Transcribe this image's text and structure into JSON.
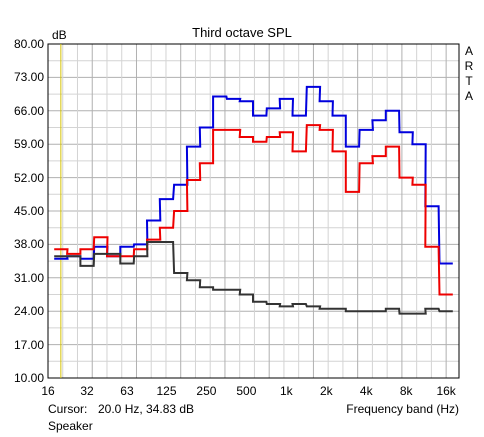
{
  "chart_data": {
    "type": "line",
    "title": "Third octave SPL",
    "ylabel": "dB",
    "xlabel": "Frequency band (Hz)",
    "y_ticks": [
      "80.00",
      "73.00",
      "66.00",
      "59.00",
      "52.00",
      "45.00",
      "38.00",
      "31.00",
      "24.00",
      "17.00",
      "10.00"
    ],
    "ylim": [
      10,
      80
    ],
    "x_ticks": [
      "16",
      "32",
      "63",
      "125",
      "250",
      "500",
      "1k",
      "2k",
      "4k",
      "8k",
      "16k"
    ],
    "x_tick_values": [
      16,
      31.5,
      63,
      125,
      250,
      500,
      1000,
      2000,
      4000,
      8000,
      16000
    ],
    "xlim": [
      16,
      20000
    ],
    "x_scale": "log",
    "grid": true,
    "cursor_freq": 20,
    "bands": [
      20,
      25,
      31.5,
      40,
      50,
      63,
      80,
      100,
      125,
      160,
      200,
      250,
      315,
      400,
      500,
      630,
      800,
      1000,
      1250,
      1600,
      2000,
      2500,
      3150,
      4000,
      5000,
      6300,
      8000,
      10000,
      12500,
      16000
    ],
    "series": [
      {
        "color": "#0000dd",
        "values": [
          35,
          35.5,
          35,
          37.5,
          35.5,
          37.5,
          38,
          43,
          47.5,
          50.5,
          58.5,
          62.5,
          69,
          68.5,
          68,
          65,
          66.5,
          68.5,
          65,
          71,
          68,
          65,
          58.5,
          62,
          64,
          66,
          61.5,
          59,
          46,
          34
        ]
      },
      {
        "color": "#ee0000",
        "values": [
          37,
          36,
          37,
          39.5,
          35.5,
          35.5,
          37,
          39,
          41.5,
          45,
          51.5,
          55,
          62,
          62,
          60.5,
          59.5,
          60.5,
          61.5,
          57.5,
          63,
          62,
          57.5,
          49,
          55,
          56.5,
          58.5,
          52,
          50.5,
          37.5,
          27.5
        ]
      },
      {
        "color": "#333333",
        "values": [
          35.5,
          35.5,
          33.5,
          36,
          36,
          34,
          35.5,
          38.5,
          38.5,
          32,
          30.5,
          29,
          28.5,
          28.5,
          27.5,
          26,
          25.5,
          25,
          25.5,
          25,
          24.5,
          24.5,
          24,
          24,
          24,
          24.5,
          23.5,
          23.5,
          24.5,
          24
        ]
      }
    ]
  },
  "brand_letters": [
    "A",
    "R",
    "T",
    "A"
  ],
  "cursor_label": "Cursor:",
  "cursor_value": "20.0 Hz, 34.83 dB",
  "footer_label": "Speaker"
}
